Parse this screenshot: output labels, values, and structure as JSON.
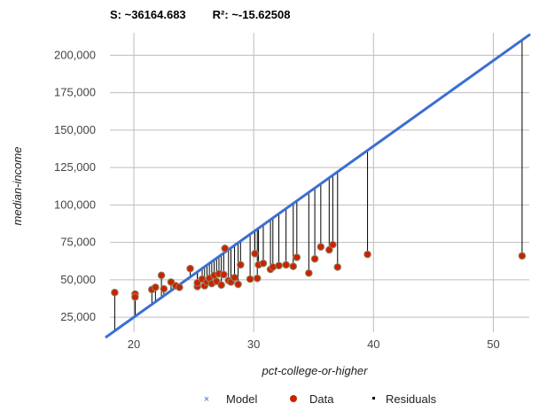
{
  "stats": {
    "s_label": "S: ~36164.683",
    "r2_label": "R²: ~-15.62508"
  },
  "colors": {
    "model": "#3c6fd1",
    "data_fill": "#cc2200",
    "data_stroke": "#8a8a6a",
    "residual": "#000000",
    "grid": "#bdbdbd"
  },
  "chart_data": {
    "type": "scatter",
    "xlabel": "pct-college-or-higher",
    "ylabel": "median-income",
    "xlim": [
      18,
      53
    ],
    "ylim": [
      15000,
      215000
    ],
    "xticks": [
      20,
      30,
      40,
      50
    ],
    "yticks": [
      25000,
      50000,
      75000,
      100000,
      125000,
      150000,
      175000,
      200000
    ],
    "ytick_labels": [
      "25,000",
      "50,000",
      "75,000",
      "100,000",
      "125,000",
      "150,000",
      "175,000",
      "200,000"
    ],
    "model": {
      "type": "line",
      "slope": 5714.3,
      "intercept": -89286
    },
    "legend": {
      "placement": "bottom",
      "entries": [
        "Model",
        "Data",
        "Residuals"
      ]
    },
    "points": [
      [
        18.4,
        41500
      ],
      [
        20.1,
        40500
      ],
      [
        20.1,
        38500
      ],
      [
        21.5,
        43500
      ],
      [
        21.8,
        45000
      ],
      [
        22.3,
        53000
      ],
      [
        22.5,
        44000
      ],
      [
        23.1,
        48500
      ],
      [
        23.5,
        46000
      ],
      [
        23.8,
        45000
      ],
      [
        24.7,
        57500
      ],
      [
        25.3,
        45500
      ],
      [
        25.3,
        48000
      ],
      [
        25.7,
        50500
      ],
      [
        25.9,
        46000
      ],
      [
        26.1,
        48500
      ],
      [
        26.3,
        51000
      ],
      [
        26.5,
        47500
      ],
      [
        26.7,
        53000
      ],
      [
        26.9,
        49000
      ],
      [
        27.1,
        54000
      ],
      [
        27.3,
        46500
      ],
      [
        27.5,
        53500
      ],
      [
        27.6,
        71000
      ],
      [
        27.9,
        49500
      ],
      [
        28.1,
        48500
      ],
      [
        28.4,
        51500
      ],
      [
        28.7,
        47000
      ],
      [
        28.9,
        60000
      ],
      [
        29.7,
        50500
      ],
      [
        30.1,
        67500
      ],
      [
        30.3,
        51000
      ],
      [
        30.4,
        60000
      ],
      [
        30.8,
        61000
      ],
      [
        31.4,
        57000
      ],
      [
        31.6,
        58500
      ],
      [
        32.1,
        59500
      ],
      [
        32.7,
        60000
      ],
      [
        33.3,
        59000
      ],
      [
        33.6,
        65000
      ],
      [
        34.6,
        54500
      ],
      [
        35.1,
        64000
      ],
      [
        35.6,
        72000
      ],
      [
        36.3,
        70000
      ],
      [
        36.6,
        73500
      ],
      [
        37.0,
        58500
      ],
      [
        39.5,
        67000
      ],
      [
        52.4,
        66000
      ]
    ]
  }
}
